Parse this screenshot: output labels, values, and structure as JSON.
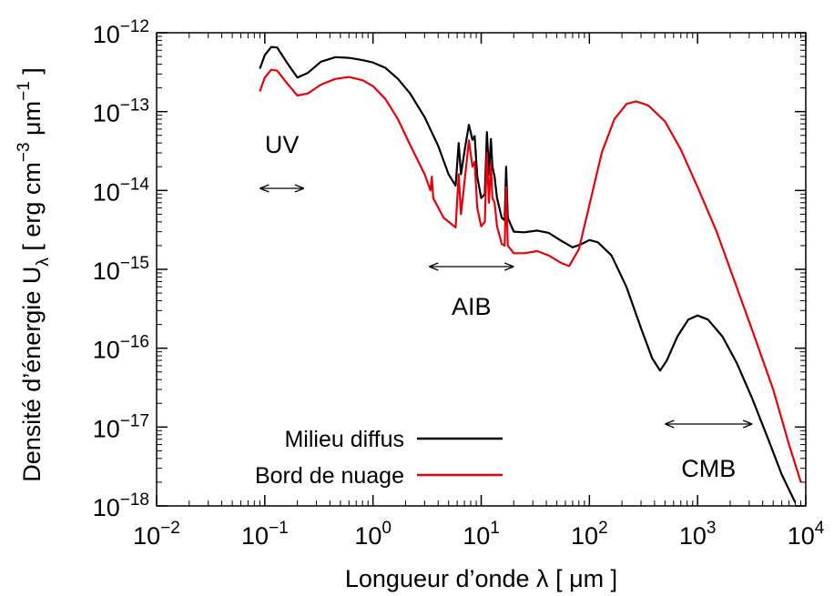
{
  "chart_data": {
    "type": "line",
    "title": "",
    "xlabel": "Longueur d’onde λ [ μm ]",
    "ylabel": "Densité d’énergie  Uλ  [ erg cm−3 μm−1 ]",
    "xscale": "log",
    "yscale": "log",
    "xlim": [
      0.01,
      10000
    ],
    "ylim": [
      1e-18,
      1e-12
    ],
    "grid": false,
    "legend_position": "bottom-left",
    "x_ticks": [
      {
        "value": 0.01,
        "base": "10",
        "exp": "−2"
      },
      {
        "value": 0.1,
        "base": "10",
        "exp": "−1"
      },
      {
        "value": 1,
        "base": "10",
        "exp": "0"
      },
      {
        "value": 10,
        "base": "10",
        "exp": "1"
      },
      {
        "value": 100,
        "base": "10",
        "exp": "2"
      },
      {
        "value": 1000,
        "base": "10",
        "exp": "3"
      },
      {
        "value": 10000,
        "base": "10",
        "exp": "4"
      }
    ],
    "y_ticks": [
      {
        "value": 1e-12,
        "base": "10",
        "exp": "−12"
      },
      {
        "value": 1e-13,
        "base": "10",
        "exp": "−13"
      },
      {
        "value": 1e-14,
        "base": "10",
        "exp": "−14"
      },
      {
        "value": 1e-15,
        "base": "10",
        "exp": "−15"
      },
      {
        "value": 1e-16,
        "base": "10",
        "exp": "−16"
      },
      {
        "value": 1e-17,
        "base": "10",
        "exp": "−17"
      },
      {
        "value": 1e-18,
        "base": "10",
        "exp": "−18"
      }
    ],
    "series": [
      {
        "name": "Milieu diffus",
        "color": "#000000",
        "points": [
          [
            0.09,
            3.5e-13
          ],
          [
            0.1,
            5.2e-13
          ],
          [
            0.115,
            6.6e-13
          ],
          [
            0.13,
            6.5e-13
          ],
          [
            0.16,
            4.2e-13
          ],
          [
            0.2,
            2.7e-13
          ],
          [
            0.25,
            3.1e-13
          ],
          [
            0.33,
            4.3e-13
          ],
          [
            0.45,
            4.9e-13
          ],
          [
            0.6,
            4.8e-13
          ],
          [
            0.8,
            4.5e-13
          ],
          [
            1.0,
            4.2e-13
          ],
          [
            1.3,
            3.6e-13
          ],
          [
            1.7,
            2.6e-13
          ],
          [
            2.2,
            1.7e-13
          ],
          [
            3.0,
            8.5e-14
          ],
          [
            4.0,
            3.7e-14
          ],
          [
            5.0,
            1.6e-14
          ],
          [
            5.8,
            1.15e-14
          ],
          [
            6.2,
            4e-14
          ],
          [
            6.5,
            1.6e-14
          ],
          [
            7.1,
            3.5e-14
          ],
          [
            7.7,
            6.8e-14
          ],
          [
            8.3,
            4.4e-14
          ],
          [
            8.7,
            4.9e-14
          ],
          [
            9.2,
            1.5e-14
          ],
          [
            10.0,
            8e-15
          ],
          [
            10.8,
            9e-15
          ],
          [
            11.3,
            5.5e-14
          ],
          [
            11.8,
            1.6e-14
          ],
          [
            12.3,
            4.5e-14
          ],
          [
            12.7,
            2e-14
          ],
          [
            13.3,
            1.5e-14
          ],
          [
            14.0,
            8e-15
          ],
          [
            15.5,
            4.5e-15
          ],
          [
            16.5,
            4.2e-15
          ],
          [
            17.0,
            2e-14
          ],
          [
            17.6,
            4.5e-15
          ],
          [
            20,
            3e-15
          ],
          [
            25,
            2.95e-15
          ],
          [
            33,
            3.1e-15
          ],
          [
            42,
            2.9e-15
          ],
          [
            55,
            2.3e-15
          ],
          [
            70,
            1.9e-15
          ],
          [
            85,
            2.1e-15
          ],
          [
            100,
            2.35e-15
          ],
          [
            120,
            2.2e-15
          ],
          [
            160,
            1.5e-15
          ],
          [
            220,
            6e-16
          ],
          [
            300,
            1.8e-16
          ],
          [
            380,
            7.5e-17
          ],
          [
            450,
            5.2e-17
          ],
          [
            520,
            7e-17
          ],
          [
            650,
            1.4e-16
          ],
          [
            820,
            2.3e-16
          ],
          [
            1000,
            2.6e-16
          ],
          [
            1250,
            2.3e-16
          ],
          [
            1700,
            1.4e-16
          ],
          [
            2300,
            6.5e-17
          ],
          [
            3200,
            2.3e-17
          ],
          [
            4500,
            7e-18
          ],
          [
            6000,
            2.5e-18
          ],
          [
            8000,
            1.1e-18
          ]
        ]
      },
      {
        "name": "Bord de nuage",
        "color": "#e8000b",
        "points": [
          [
            0.09,
            1.8e-13
          ],
          [
            0.1,
            2.7e-13
          ],
          [
            0.115,
            3.4e-13
          ],
          [
            0.13,
            3.3e-13
          ],
          [
            0.16,
            2.3e-13
          ],
          [
            0.2,
            1.6e-13
          ],
          [
            0.25,
            1.7e-13
          ],
          [
            0.33,
            2.2e-13
          ],
          [
            0.45,
            2.6e-13
          ],
          [
            0.6,
            2.75e-13
          ],
          [
            0.8,
            2.5e-13
          ],
          [
            1.0,
            2.1e-13
          ],
          [
            1.3,
            1.45e-13
          ],
          [
            1.7,
            8e-14
          ],
          [
            2.2,
            3.8e-14
          ],
          [
            3.0,
            1.6e-14
          ],
          [
            3.4,
            1e-14
          ],
          [
            3.5,
            1.5e-14
          ],
          [
            3.6,
            8e-15
          ],
          [
            4.5,
            4.5e-15
          ],
          [
            5.8,
            3.4e-15
          ],
          [
            6.2,
            1.6e-14
          ],
          [
            6.5,
            5e-15
          ],
          [
            7.1,
            1.5e-14
          ],
          [
            7.7,
            4.3e-14
          ],
          [
            8.3,
            2e-14
          ],
          [
            8.7,
            2.3e-14
          ],
          [
            9.2,
            6e-15
          ],
          [
            10.0,
            3.5e-15
          ],
          [
            10.8,
            4e-15
          ],
          [
            11.3,
            3e-14
          ],
          [
            11.8,
            7e-15
          ],
          [
            12.3,
            2.2e-14
          ],
          [
            12.7,
            8e-15
          ],
          [
            13.3,
            7e-15
          ],
          [
            14.0,
            3.5e-15
          ],
          [
            15.5,
            2.1e-15
          ],
          [
            16.5,
            2e-15
          ],
          [
            17.0,
            1.1e-14
          ],
          [
            17.6,
            2e-15
          ],
          [
            20,
            1.6e-15
          ],
          [
            25,
            1.6e-15
          ],
          [
            33,
            1.7e-15
          ],
          [
            42,
            1.5e-15
          ],
          [
            55,
            1.2e-15
          ],
          [
            65,
            1.1e-15
          ],
          [
            80,
            1.8e-15
          ],
          [
            100,
            6.5e-15
          ],
          [
            130,
            3e-14
          ],
          [
            170,
            8e-14
          ],
          [
            220,
            1.25e-13
          ],
          [
            270,
            1.35e-13
          ],
          [
            350,
            1.2e-13
          ],
          [
            500,
            7.5e-14
          ],
          [
            700,
            3.3e-14
          ],
          [
            1000,
            1.1e-14
          ],
          [
            1500,
            3e-15
          ],
          [
            2200,
            7e-16
          ],
          [
            3300,
            1.5e-16
          ],
          [
            5000,
            3e-17
          ],
          [
            7000,
            6e-18
          ],
          [
            9000,
            2e-18
          ]
        ]
      }
    ],
    "annotations": [
      {
        "name": "uv",
        "text": "UV",
        "range": [
          0.09,
          0.23
        ]
      },
      {
        "name": "aib",
        "text": "AIB",
        "range": [
          3.3,
          20
        ]
      },
      {
        "name": "cmb",
        "text": "CMB",
        "range": [
          500,
          3200
        ]
      }
    ]
  }
}
